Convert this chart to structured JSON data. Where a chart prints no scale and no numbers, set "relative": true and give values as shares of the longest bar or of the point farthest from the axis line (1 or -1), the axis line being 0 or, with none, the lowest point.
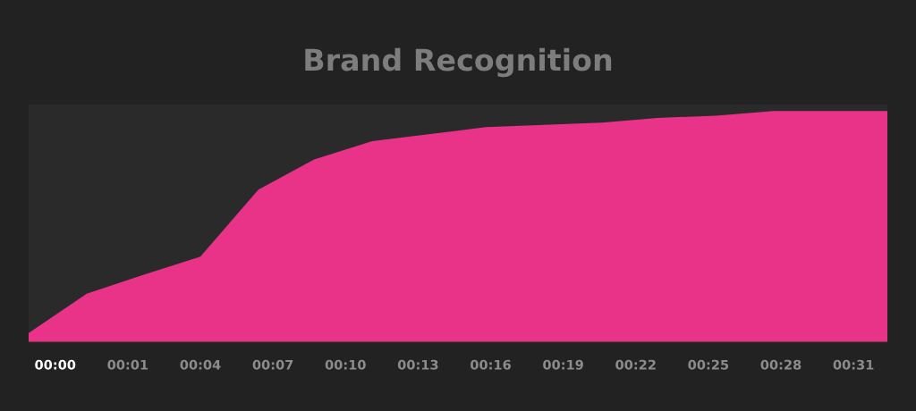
{
  "chart_data": {
    "type": "area",
    "title": "Brand Recognition",
    "relative": true,
    "x": [
      -3.1,
      -0.7,
      1.6,
      4.0,
      6.4,
      8.7,
      11.1,
      13.5,
      15.8,
      18.2,
      20.6,
      22.9,
      25.3,
      27.7,
      30.0,
      32.4
    ],
    "series": [
      {
        "color": "#e83388",
        "values": [
          0.04,
          0.21,
          0.29,
          0.37,
          0.66,
          0.79,
          0.87,
          0.9,
          0.93,
          0.94,
          0.95,
          0.97,
          0.98,
          1,
          1,
          1
        ]
      }
    ],
    "xlim": [
      -3.1,
      32.4
    ],
    "xticks": [
      {
        "value": -2,
        "label": "00:00"
      },
      {
        "value": 1,
        "label": "00:01"
      },
      {
        "value": 4,
        "label": "00:04"
      },
      {
        "value": 7,
        "label": "00:07"
      },
      {
        "value": 10,
        "label": "00:10"
      },
      {
        "value": 13,
        "label": "00:13"
      },
      {
        "value": 16,
        "label": "00:16"
      },
      {
        "value": 19,
        "label": "00:19"
      },
      {
        "value": 22,
        "label": "00:22"
      },
      {
        "value": 25,
        "label": "00:25"
      },
      {
        "value": 28,
        "label": "00:28"
      },
      {
        "value": 31,
        "label": "00:31"
      }
    ],
    "grid": false
  }
}
